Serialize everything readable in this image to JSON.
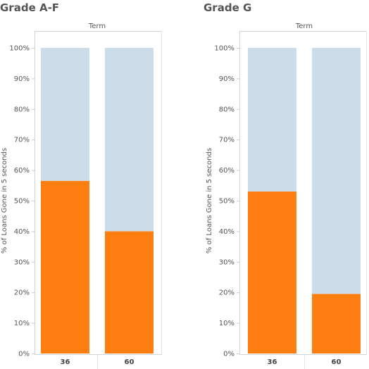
{
  "chart_data": [
    {
      "type": "bar",
      "stacked": true,
      "title": "Grade A-F",
      "column_header": "Term",
      "ylabel": "% of Loans Gone in 5 seconds",
      "categories": [
        "36",
        "60"
      ],
      "series": [
        {
          "values": [
            56.5,
            40.0
          ],
          "color": "#fe7e12"
        },
        {
          "values": [
            43.5,
            60.0
          ],
          "color": "#ccdce8"
        }
      ],
      "ylim": [
        0,
        100
      ],
      "yticks": [
        "0%",
        "10%",
        "20%",
        "30%",
        "40%",
        "50%",
        "60%",
        "70%",
        "80%",
        "90%",
        "100%"
      ],
      "grid": false
    },
    {
      "type": "bar",
      "stacked": true,
      "title": "Grade G",
      "column_header": "Term",
      "ylabel": "% of Loans Gone in 5 seconds",
      "categories": [
        "36",
        "60"
      ],
      "series": [
        {
          "values": [
            53.0,
            19.5
          ],
          "color": "#fe7e12"
        },
        {
          "values": [
            47.0,
            80.5
          ],
          "color": "#ccdce8"
        }
      ],
      "ylim": [
        0,
        100
      ],
      "yticks": [
        "0%",
        "10%",
        "20%",
        "30%",
        "40%",
        "50%",
        "60%",
        "70%",
        "80%",
        "90%",
        "100%"
      ],
      "grid": false
    }
  ]
}
